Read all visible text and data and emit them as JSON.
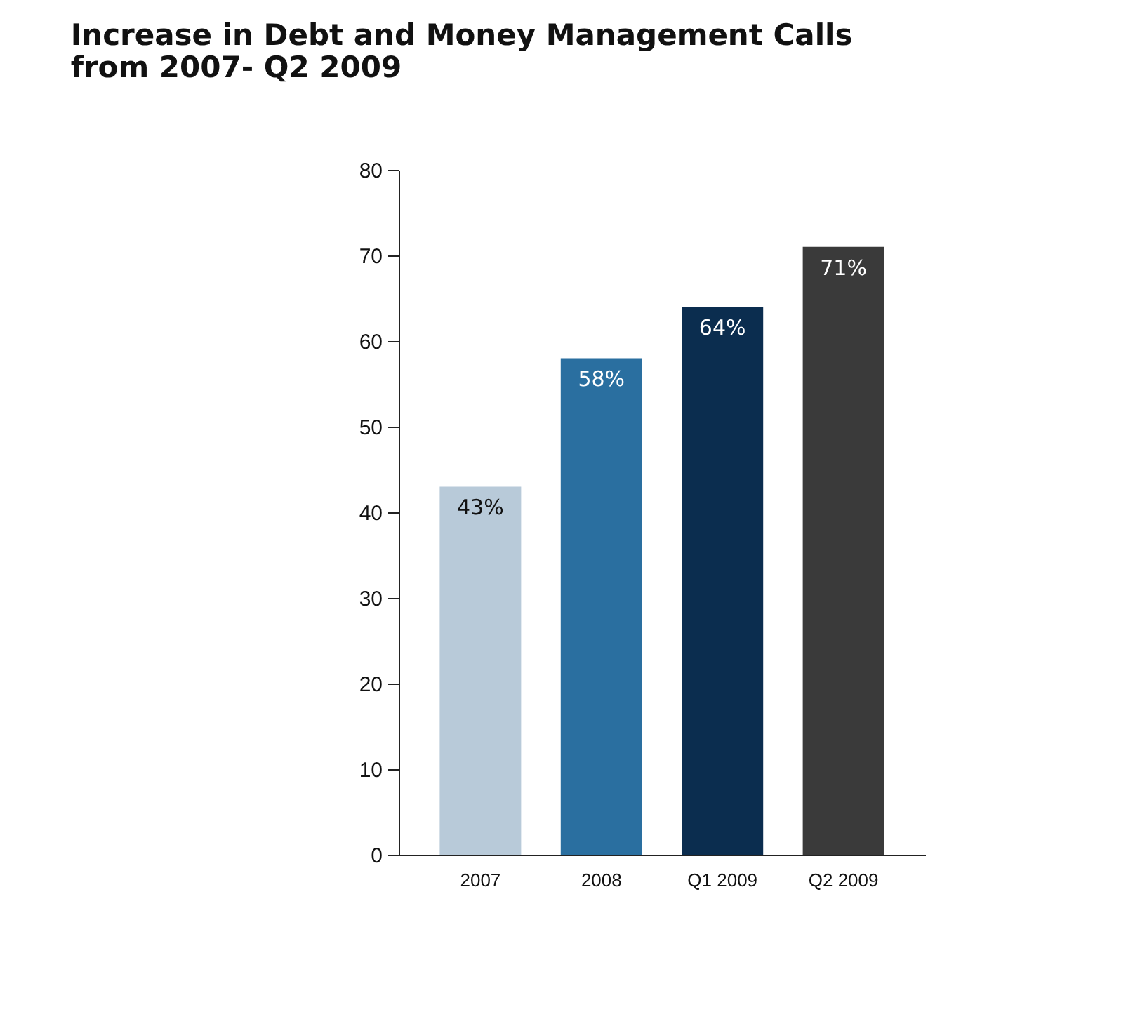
{
  "chart_data": {
    "type": "bar",
    "title": [
      "Increase in Debt and Money Management Calls",
      "from 2007- Q2 2009"
    ],
    "categories": [
      "2007",
      "2008",
      "Q1 2009",
      "Q2 2009"
    ],
    "values": [
      43,
      58,
      64,
      71
    ],
    "colors": [
      "#b8cad9",
      "#2a6fa0",
      "#0b2d4f",
      "#3a3a3a"
    ],
    "value_labels": [
      "43%",
      "58%",
      "64%",
      "71%"
    ],
    "ylim": [
      0,
      80
    ],
    "yticks": [
      0,
      10,
      20,
      30,
      40,
      50,
      60,
      70,
      80
    ],
    "grid": false
  }
}
